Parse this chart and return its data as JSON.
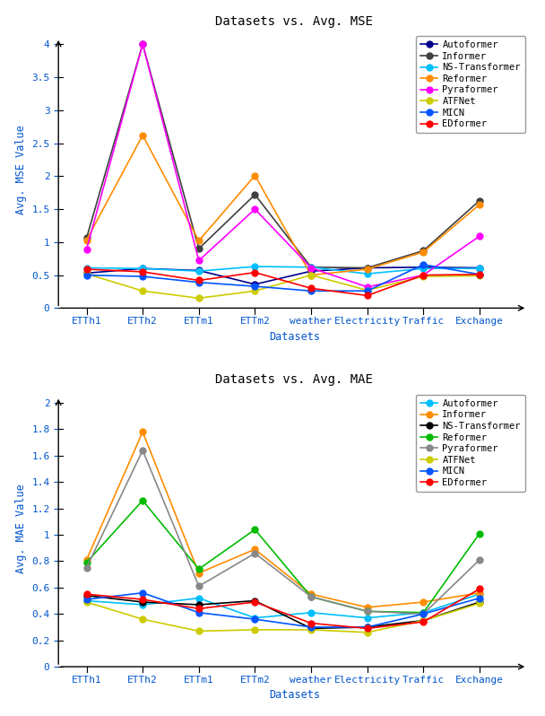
{
  "datasets": [
    "ETTh1",
    "ETTh2",
    "ETTm1",
    "ETTm2",
    "weather",
    "Electricity",
    "Traffic",
    "Exchange"
  ],
  "mse": {
    "title": "Datasets vs. Avg. MSE",
    "ylabel": "Avg. MSE Value",
    "xlabel": "Datasets",
    "ylim": [
      0,
      4.2
    ],
    "yticks": [
      0,
      0.5,
      1.0,
      1.5,
      2.0,
      2.5,
      3.0,
      3.5,
      4.0
    ],
    "series_order": [
      "Autoformer",
      "Informer",
      "NS-Transformer",
      "Reformer",
      "Pyraformer",
      "ATFNet",
      "MICN",
      "EDformer"
    ],
    "series": {
      "Autoformer": {
        "color": "#00008B",
        "marker": "o",
        "values": [
          0.53,
          0.6,
          0.57,
          0.36,
          0.56,
          0.61,
          0.62,
          0.61
        ]
      },
      "Informer": {
        "color": "#404040",
        "marker": "o",
        "values": [
          1.06,
          4.0,
          0.9,
          1.72,
          0.62,
          0.61,
          0.87,
          1.63
        ]
      },
      "NS-Transformer": {
        "color": "#00bfff",
        "marker": "o",
        "values": [
          0.61,
          0.6,
          0.56,
          0.63,
          0.62,
          0.52,
          0.6,
          0.6
        ]
      },
      "Reformer": {
        "color": "#ff8c00",
        "marker": "o",
        "values": [
          1.03,
          2.62,
          1.02,
          2.01,
          0.5,
          0.59,
          0.85,
          1.57
        ]
      },
      "Pyraformer": {
        "color": "#ff00ff",
        "marker": "o",
        "values": [
          0.89,
          4.0,
          0.72,
          1.5,
          0.61,
          0.32,
          0.5,
          1.09
        ]
      },
      "ATFNet": {
        "color": "#cccc00",
        "marker": "o",
        "values": [
          0.52,
          0.26,
          0.15,
          0.26,
          0.5,
          0.27,
          0.48,
          0.49
        ]
      },
      "MICN": {
        "color": "#0055ff",
        "marker": "o",
        "values": [
          0.5,
          0.48,
          0.39,
          0.33,
          0.26,
          0.26,
          0.66,
          0.51
        ]
      },
      "EDformer": {
        "color": "#ff0000",
        "marker": "o",
        "values": [
          0.59,
          0.55,
          0.42,
          0.54,
          0.3,
          0.19,
          0.5,
          0.51
        ]
      }
    }
  },
  "mae": {
    "title": "Datasets vs. Avg. MAE",
    "ylabel": "Avg. MAE Value",
    "xlabel": "Datasets",
    "ylim": [
      0,
      2.1
    ],
    "yticks": [
      0,
      0.2,
      0.4,
      0.6,
      0.8,
      1.0,
      1.2,
      1.4,
      1.6,
      1.8,
      2.0
    ],
    "series_order": [
      "Autoformer",
      "Informer",
      "NS-Transformer",
      "Reformer",
      "Pyraformer",
      "ATFNet",
      "MICN",
      "EDformer"
    ],
    "series": {
      "Autoformer": {
        "color": "#00bfff",
        "marker": "o",
        "values": [
          0.5,
          0.47,
          0.52,
          0.37,
          0.41,
          0.37,
          0.41,
          0.55
        ]
      },
      "Informer": {
        "color": "#ff8c00",
        "marker": "o",
        "values": [
          0.81,
          1.78,
          0.71,
          0.89,
          0.55,
          0.45,
          0.49,
          0.56
        ]
      },
      "NS-Transformer": {
        "color": "#000000",
        "marker": "o",
        "values": [
          0.54,
          0.49,
          0.47,
          0.5,
          0.29,
          0.3,
          0.35,
          0.49
        ]
      },
      "Reformer": {
        "color": "#00bb00",
        "marker": "o",
        "values": [
          0.79,
          1.26,
          0.74,
          1.04,
          0.53,
          0.42,
          0.41,
          1.01
        ]
      },
      "Pyraformer": {
        "color": "#888888",
        "marker": "o",
        "values": [
          0.75,
          1.64,
          0.61,
          0.86,
          0.53,
          0.42,
          0.4,
          0.81
        ]
      },
      "ATFNet": {
        "color": "#cccc00",
        "marker": "o",
        "values": [
          0.49,
          0.36,
          0.27,
          0.28,
          0.28,
          0.26,
          0.35,
          0.48
        ]
      },
      "MICN": {
        "color": "#0055ff",
        "marker": "o",
        "values": [
          0.51,
          0.56,
          0.41,
          0.36,
          0.3,
          0.3,
          0.4,
          0.52
        ]
      },
      "EDformer": {
        "color": "#ff0000",
        "marker": "o",
        "values": [
          0.55,
          0.51,
          0.44,
          0.49,
          0.33,
          0.29,
          0.34,
          0.59
        ]
      }
    }
  }
}
